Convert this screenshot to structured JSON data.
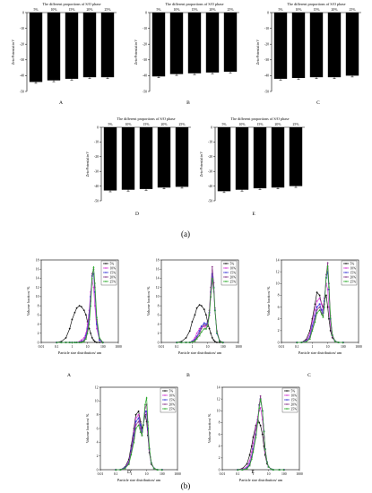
{
  "figure": {
    "label_a": "(a)",
    "label_b": "(b)"
  },
  "zeta": {
    "title": "The different proportions of S/O phase",
    "ylabel": "Zeta-Potential/mV",
    "yticks": [
      "0",
      "-10",
      "-20",
      "-30",
      "-40",
      "-50"
    ],
    "categories": [
      "5%",
      "10%",
      "15%",
      "20%",
      "25%"
    ],
    "ylim": [
      -50,
      0
    ]
  },
  "psd": {
    "xlabel": "Particle size distribution/ um",
    "ylabel": "Volume fraction/ %",
    "xticks": [
      "0.01",
      "0.1",
      "1",
      "10",
      "100",
      "1000"
    ],
    "legend": [
      "5%",
      "10%",
      "15%",
      "20%",
      "25%"
    ],
    "colors": [
      "#111111",
      "#d63ad6",
      "#3a3ad6",
      "#8b3a8b",
      "#2aa82a"
    ]
  },
  "chart_data": [
    {
      "type": "bar",
      "panel": "A",
      "title": "The different proportions of S/O phase",
      "ylabel": "Zeta-Potential/mV",
      "categories": [
        "5%",
        "10%",
        "15%",
        "20%",
        "25%"
      ],
      "values": [
        -44,
        -43,
        -42,
        -41,
        -41
      ],
      "ylim": [
        -50,
        0
      ]
    },
    {
      "type": "bar",
      "panel": "B",
      "title": "The different proportions of S/O phase",
      "ylabel": "Zeta-Potential/mV",
      "categories": [
        "5%",
        "10%",
        "15%",
        "20%",
        "25%"
      ],
      "values": [
        -40.5,
        -39,
        -38.5,
        -38,
        -37.5
      ],
      "ylim": [
        -50,
        0
      ]
    },
    {
      "type": "bar",
      "panel": "C",
      "title": "The different proportions of S/O phase",
      "ylabel": "Zeta-Potential/mV",
      "categories": [
        "5%",
        "10%",
        "15%",
        "20%",
        "25%"
      ],
      "values": [
        -42,
        -41.5,
        -41,
        -41,
        -40
      ],
      "ylim": [
        -50,
        0
      ]
    },
    {
      "type": "bar",
      "panel": "D",
      "title": "The different proportions of S/O phase",
      "ylabel": "Zeta-Potential/mV",
      "categories": [
        "5%",
        "10%",
        "15%",
        "20%",
        "25%"
      ],
      "values": [
        -43,
        -42.5,
        -42,
        -41,
        -40.5
      ],
      "ylim": [
        -50,
        0
      ]
    },
    {
      "type": "bar",
      "panel": "E",
      "title": "The different proportions of S/O phase",
      "ylabel": "Zeta-Potential/mV",
      "categories": [
        "5%",
        "10%",
        "15%",
        "20%",
        "25%"
      ],
      "values": [
        -43.5,
        -42.5,
        -41.5,
        -41,
        -40
      ],
      "ylim": [
        -50,
        0
      ]
    },
    {
      "type": "line",
      "panel": "A",
      "xlabel": "Particle size distribution/ um",
      "ylabel": "Volume fraction/ %",
      "xscale": "log",
      "xlim": [
        0.01,
        1000
      ],
      "ylim": [
        0,
        18
      ],
      "yticks": [
        0,
        2,
        4,
        6,
        8,
        10,
        12,
        14,
        16,
        18
      ],
      "legend": "top-right",
      "x": [
        0.1,
        0.2,
        0.4,
        0.7,
        1,
        1.5,
        2,
        3,
        4,
        6,
        8,
        10,
        13,
        16,
        20,
        25,
        30,
        40,
        60,
        100
      ],
      "series": [
        {
          "name": "5%",
          "values": [
            0,
            0.2,
            1,
            3,
            5,
            6.5,
            7.5,
            8,
            7.8,
            7,
            6,
            4.5,
            3,
            2,
            1,
            0.5,
            0.2,
            0,
            0,
            0
          ]
        },
        {
          "name": "10%",
          "values": [
            0,
            0,
            0,
            0,
            0,
            0,
            0,
            0.2,
            0.5,
            1,
            2,
            4,
            7,
            11,
            13.5,
            12,
            8,
            3,
            0.5,
            0
          ]
        },
        {
          "name": "15%",
          "values": [
            0,
            0,
            0,
            0,
            0,
            0,
            0,
            0,
            0.2,
            0.5,
            1.5,
            3,
            6,
            10,
            14.5,
            15,
            11,
            4,
            0.5,
            0
          ]
        },
        {
          "name": "20%",
          "values": [
            0,
            0,
            0,
            0,
            0,
            0,
            0,
            0,
            0.1,
            0.4,
            1,
            2.5,
            5,
            9,
            15,
            16,
            12,
            5,
            0.8,
            0
          ]
        },
        {
          "name": "25%",
          "values": [
            0,
            0,
            0,
            0,
            0,
            0,
            0,
            0,
            0,
            0.2,
            0.8,
            2,
            4,
            8,
            14,
            16.5,
            13,
            5.5,
            1,
            0
          ]
        }
      ]
    },
    {
      "type": "line",
      "panel": "B",
      "xlabel": "Particle size distribution/ um",
      "ylabel": "Volume fraction/ %",
      "xscale": "log",
      "xlim": [
        0.01,
        1000
      ],
      "ylim": [
        0,
        18
      ],
      "yticks": [
        0,
        2,
        4,
        6,
        8,
        10,
        12,
        14,
        16,
        18
      ],
      "legend": "top-right",
      "x": [
        0.1,
        0.2,
        0.4,
        0.7,
        1,
        1.5,
        2,
        3,
        4,
        6,
        8,
        10,
        13,
        16,
        20,
        25,
        30,
        40,
        60,
        100
      ],
      "series": [
        {
          "name": "5%",
          "values": [
            0,
            0.2,
            1,
            2.5,
            4.5,
            6,
            7.5,
            8.2,
            8,
            7.2,
            6,
            4.5,
            3,
            2,
            1,
            0.5,
            0.2,
            0,
            0,
            0
          ]
        },
        {
          "name": "10%",
          "values": [
            0,
            0,
            0,
            0,
            0.3,
            1,
            2,
            3,
            3.5,
            3.5,
            3,
            3.5,
            6,
            10,
            13.5,
            11,
            7,
            2.5,
            0.4,
            0
          ]
        },
        {
          "name": "15%",
          "values": [
            0,
            0,
            0,
            0,
            0.2,
            0.6,
            1.3,
            2.5,
            3.5,
            4.2,
            4,
            4.2,
            6.5,
            11,
            15,
            12,
            7,
            2,
            0.3,
            0
          ]
        },
        {
          "name": "20%",
          "values": [
            0,
            0,
            0,
            0,
            0.1,
            0.4,
            1,
            2,
            3,
            3.8,
            3.6,
            4,
            7,
            12,
            16.5,
            13,
            7.5,
            2.5,
            0.3,
            0
          ]
        },
        {
          "name": "25%",
          "values": [
            0,
            0,
            0,
            0,
            0.1,
            0.3,
            0.8,
            1.5,
            2.3,
            3,
            3,
            3.5,
            6,
            10,
            14,
            12,
            7,
            2.2,
            0.3,
            0
          ]
        }
      ]
    },
    {
      "type": "line",
      "panel": "C",
      "xlabel": "Particle size distribution/ um",
      "ylabel": "Volume fraction/ %",
      "xscale": "log",
      "xlim": [
        0.01,
        1000
      ],
      "ylim": [
        0,
        14
      ],
      "yticks": [
        0,
        2,
        4,
        6,
        8,
        10,
        12,
        14
      ],
      "legend": "top-right",
      "x": [
        0.1,
        0.2,
        0.4,
        0.7,
        1,
        1.5,
        2,
        3,
        4,
        5,
        6,
        8,
        10,
        12,
        15,
        20,
        30,
        50,
        100
      ],
      "series": [
        {
          "name": "5%",
          "values": [
            0,
            0,
            0.5,
            2,
            4,
            6.5,
            8.5,
            8,
            6.5,
            6,
            7,
            8,
            6,
            4,
            2,
            0.8,
            0.2,
            0,
            0
          ]
        },
        {
          "name": "10%",
          "values": [
            0,
            0,
            0.3,
            1.5,
            3.5,
            5.5,
            7,
            7.5,
            6.5,
            5.5,
            7.5,
            10,
            9,
            6,
            3,
            1,
            0.2,
            0,
            0
          ]
        },
        {
          "name": "15%",
          "values": [
            0,
            0,
            0.2,
            1,
            2.8,
            4.5,
            6,
            6.5,
            5.5,
            5,
            7,
            11,
            12,
            9,
            4,
            1.2,
            0.2,
            0,
            0
          ]
        },
        {
          "name": "20%",
          "values": [
            0,
            0,
            0.1,
            0.8,
            2.2,
            4,
            5.5,
            6,
            5,
            4.5,
            6.5,
            11.5,
            13.5,
            10,
            4.5,
            1.3,
            0.2,
            0,
            0
          ]
        },
        {
          "name": "25%",
          "values": [
            0,
            0,
            0.1,
            0.6,
            2,
            3.5,
            5,
            5.5,
            4.8,
            4.3,
            6,
            11,
            13,
            9.5,
            4.2,
            1.2,
            0.2,
            0,
            0
          ]
        }
      ]
    },
    {
      "type": "line",
      "panel": "D",
      "xlabel": "Particle size distribution/ um",
      "ylabel": "Volume fraction/ %",
      "xscale": "log",
      "xlim": [
        0.01,
        1000
      ],
      "ylim": [
        0,
        12
      ],
      "yticks": [
        0,
        2,
        4,
        6,
        8,
        10,
        12
      ],
      "legend": "top-right",
      "x": [
        0.1,
        0.2,
        0.4,
        0.7,
        1,
        1.5,
        2,
        3,
        4,
        5,
        6,
        8,
        10,
        12,
        15,
        20,
        30,
        50,
        100
      ],
      "series": [
        {
          "name": "5%",
          "values": [
            0,
            0,
            0.4,
            1.5,
            3.5,
            6,
            8,
            8.5,
            7,
            6,
            6.5,
            8,
            7,
            5,
            2.5,
            0.8,
            0.2,
            0,
            0
          ]
        },
        {
          "name": "10%",
          "values": [
            0,
            0,
            0.3,
            1.2,
            3,
            5.5,
            7.5,
            8,
            6.5,
            5.5,
            6.5,
            8.5,
            8,
            5.5,
            2.8,
            0.9,
            0.2,
            0,
            0
          ]
        },
        {
          "name": "15%",
          "values": [
            0,
            0,
            0.3,
            1,
            2.8,
            5,
            7,
            7.5,
            6.5,
            5.5,
            6.5,
            8.5,
            8.5,
            6,
            3,
            1,
            0.2,
            0,
            0
          ]
        },
        {
          "name": "20%",
          "values": [
            0,
            0,
            0.2,
            0.9,
            2.5,
            4.5,
            6.5,
            7,
            6,
            5,
            6.5,
            9,
            9.5,
            6.5,
            3,
            1,
            0.2,
            0,
            0
          ]
        },
        {
          "name": "25%",
          "values": [
            0,
            0,
            0.2,
            0.8,
            2.2,
            4,
            6,
            6.5,
            5.5,
            5,
            6.5,
            9.5,
            10.5,
            7,
            3.2,
            1,
            0.2,
            0,
            0
          ]
        }
      ]
    },
    {
      "type": "line",
      "panel": "E",
      "xlabel": "Particle size distribution/ um",
      "ylabel": "Volume fraction/ %",
      "xscale": "log",
      "xlim": [
        0.01,
        1000
      ],
      "ylim": [
        0,
        14
      ],
      "yticks": [
        0,
        2,
        4,
        6,
        8,
        10,
        12,
        14
      ],
      "legend": "top-right",
      "x": [
        0.1,
        0.2,
        0.4,
        0.6,
        0.8,
        1,
        1.5,
        2,
        2.5,
        3,
        4,
        5,
        6,
        8,
        10,
        15,
        20,
        50,
        100
      ],
      "series": [
        {
          "name": "5%",
          "values": [
            0,
            0.2,
            1,
            2.5,
            4,
            5.5,
            7.5,
            8.5,
            8,
            7.5,
            6,
            4,
            2.5,
            1,
            0.5,
            0.1,
            0,
            0,
            0
          ]
        },
        {
          "name": "10%",
          "values": [
            0,
            0.1,
            0.5,
            1.5,
            3,
            4.5,
            7,
            9,
            10,
            10.5,
            8.5,
            5.5,
            3,
            1.2,
            0.5,
            0.1,
            0,
            0,
            0
          ]
        },
        {
          "name": "15%",
          "values": [
            0,
            0,
            0.3,
            1,
            2.2,
            3.5,
            6,
            8.5,
            11,
            12,
            10,
            6.5,
            3.5,
            1.3,
            0.5,
            0.1,
            0,
            0,
            0
          ]
        },
        {
          "name": "20%",
          "values": [
            0,
            0,
            0.2,
            0.8,
            2,
            3.2,
            5.8,
            8.5,
            11,
            12.5,
            10,
            6.5,
            3.5,
            1.3,
            0.5,
            0.1,
            0,
            0,
            0
          ]
        },
        {
          "name": "25%",
          "values": [
            0,
            0,
            0.2,
            0.7,
            1.8,
            3,
            5.5,
            8,
            10.5,
            12,
            10,
            6.5,
            3.5,
            1.3,
            0.5,
            0.1,
            0,
            0,
            0
          ]
        }
      ]
    }
  ]
}
